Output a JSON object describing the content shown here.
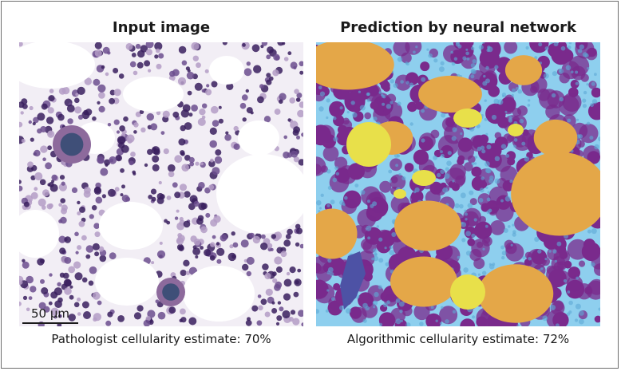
{
  "left_panel": {
    "title": "Input image",
    "caption": "Pathologist cellularity estimate: 70%",
    "scale_bar": "50 µm"
  },
  "right_panel": {
    "title": "Prediction by neural network",
    "caption": "Algorithmic cellularity estimate: 72%"
  },
  "colors": {
    "histology_background": "#f2eef5",
    "fat": "#e4a748",
    "cytoplasm": "#8ecfee",
    "nuclei": "#7a2a8c",
    "megakaryocyte": "#e8e04a",
    "frame_border": "#6d6d6d"
  }
}
